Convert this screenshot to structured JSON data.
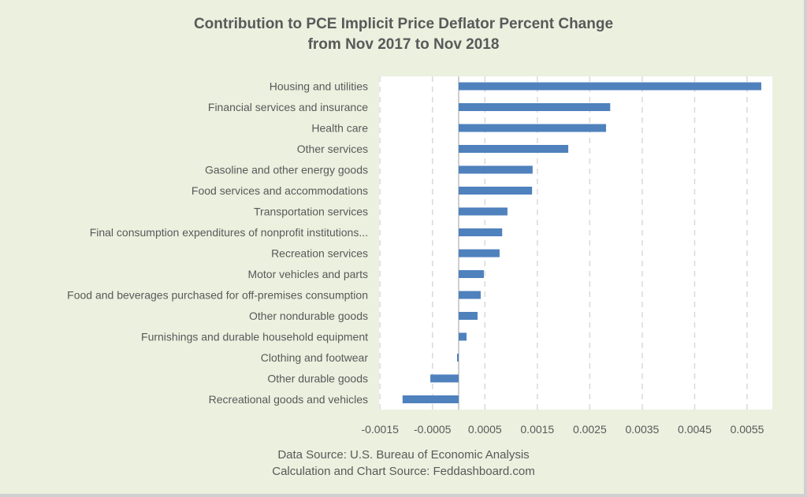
{
  "chart_data": {
    "type": "bar",
    "orientation": "horizontal",
    "title": "Contribution to PCE Implicit Price Deflator Percent Change",
    "subtitle": "from Nov 2017 to Nov 2018",
    "xlabel": "",
    "ylabel": "",
    "categories": [
      "Housing and utilities",
      "Financial services and insurance",
      "Health care",
      "Other services",
      "Gasoline and other energy goods",
      "Food services and accommodations",
      "Transportation services",
      "Final consumption expenditures of nonprofit institutions...",
      "Recreation services",
      "Motor vehicles and parts",
      "Food and beverages purchased for off-premises consumption",
      "Other nondurable goods",
      "Furnishings and durable household equipment",
      "Clothing and footwear",
      "Other durable goods",
      "Recreational goods and vehicles"
    ],
    "values": [
      0.00577,
      0.00289,
      0.00281,
      0.00209,
      0.00141,
      0.0014,
      0.00093,
      0.00083,
      0.00078,
      0.00048,
      0.00042,
      0.00036,
      0.00015,
      -3e-05,
      -0.00054,
      -0.00107
    ],
    "xlim": [
      -0.0015,
      0.006
    ],
    "xticks": [
      -0.0015,
      -0.0005,
      0.0005,
      0.0015,
      0.0025,
      0.0035,
      0.0045,
      0.0055
    ],
    "xtick_labels": [
      "-0.0015",
      "-0.0005",
      "0.0005",
      "0.0015",
      "0.0025",
      "0.0035",
      "0.0045",
      "0.0055"
    ],
    "grid": "vertical dashed",
    "legend": "none",
    "bar_color": "#4F81BD"
  },
  "footer": {
    "line1": "Data Source: U.S. Bureau of Economic Analysis",
    "line2": "Calculation and Chart Source: Feddashboard.com"
  }
}
